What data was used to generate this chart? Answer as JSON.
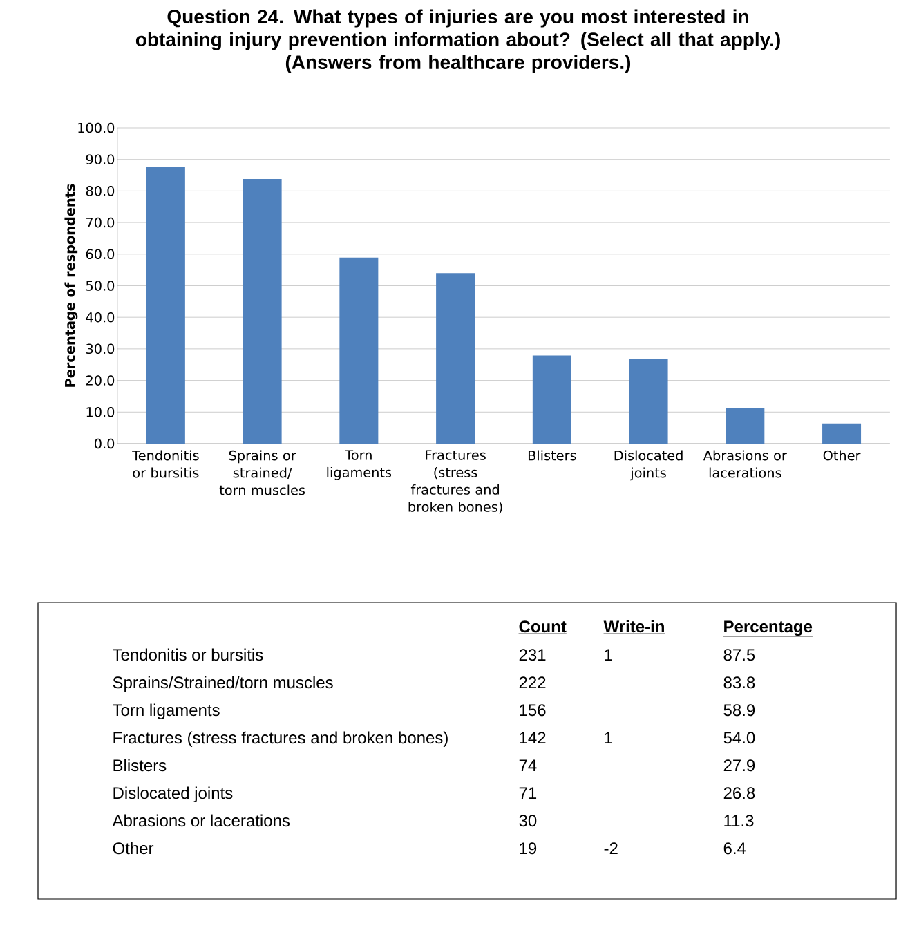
{
  "chart_data": [
    {
      "type": "bar",
      "title": "Question 24.  What types of injuries are you most interested in obtaining injury prevention information about? (Select all that apply.)",
      "subtitle": "(Answers from healthcare providers.)",
      "ylabel": "Percentage of respondents",
      "categories": [
        "Tendonitis or bursitis",
        "Sprains or strained/ torn muscles",
        "Torn ligaments",
        "Fractures (stress fractures and broken bones)",
        "Blisters",
        "Dislocated joints",
        "Abrasions or lacerations",
        "Other"
      ],
      "values": [
        87.5,
        83.8,
        58.9,
        54.0,
        27.9,
        26.8,
        11.3,
        6.4
      ],
      "color": "#4f81bd",
      "ylim": [
        0,
        100
      ],
      "yticks": [
        {
          "value": 0,
          "label": "0.0"
        },
        {
          "value": 10,
          "label": "10.0"
        },
        {
          "value": 20,
          "label": "20.0"
        },
        {
          "value": 30,
          "label": "30.0"
        },
        {
          "value": 40,
          "label": "40.0"
        },
        {
          "value": 50,
          "label": "50.0"
        },
        {
          "value": 60,
          "label": "60.0"
        },
        {
          "value": 70,
          "label": "70.0"
        },
        {
          "value": 80,
          "label": "80.0"
        },
        {
          "value": 90,
          "label": "90.0"
        },
        {
          "value": 100,
          "label": "100.0"
        }
      ],
      "grid": "y"
    },
    {
      "type": "other",
      "data_labels": true,
      "categories": [
        "Tendonitis or bursitis",
        "Sprains/Strained/torn muscles",
        "Torn ligaments",
        "Fractures (stress fractures and broken bones)",
        "Blisters",
        "Dislocated joints",
        "Abrasions or lacerations",
        "Other"
      ],
      "series": [
        {
          "name": "Count",
          "values": [
            231,
            222,
            156,
            142,
            74,
            71,
            30,
            19
          ]
        },
        {
          "name": "Write-in",
          "values": [
            1,
            null,
            null,
            1,
            null,
            null,
            null,
            -2
          ]
        },
        {
          "name": "Percentage",
          "values": [
            87.5,
            83.8,
            58.9,
            54.0,
            27.9,
            26.8,
            11.3,
            6.4
          ],
          "value_labels": [
            "87.5",
            "83.8",
            "58.9",
            "54.0",
            "27.9",
            "26.8",
            "11.3",
            "6.4"
          ]
        }
      ]
    }
  ]
}
